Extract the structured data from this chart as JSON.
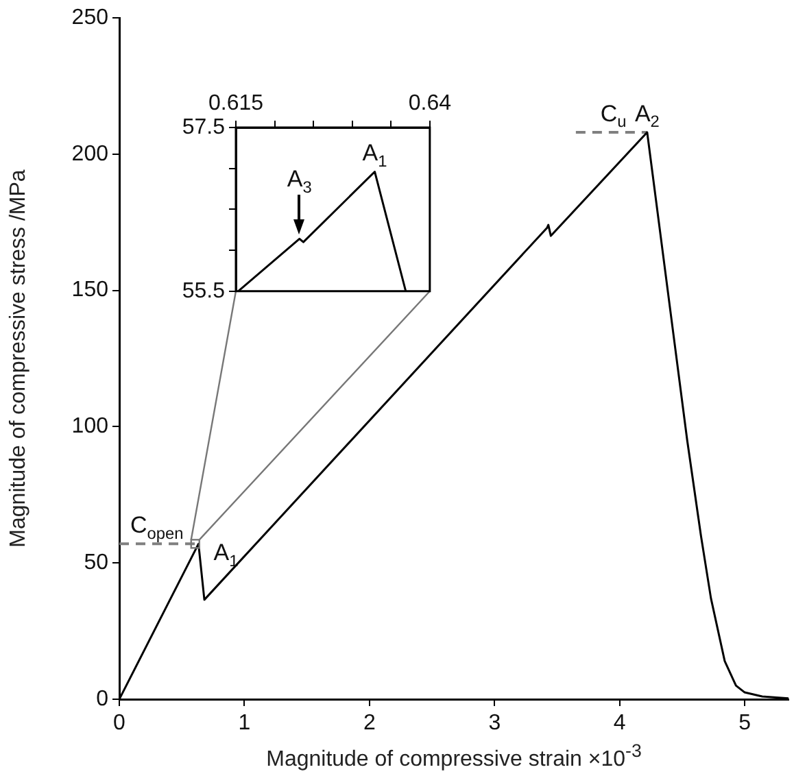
{
  "chart_data": [
    {
      "type": "line",
      "xlabel": "Magnitude of compressive strain ×10$^{-3}$",
      "ylabel": "Magnitude of compressive stress /MPa",
      "xlim": [
        0,
        5.35
      ],
      "ylim": [
        0,
        250
      ],
      "xticks": [
        0,
        1,
        2,
        3,
        4,
        5
      ],
      "yticks": [
        0,
        50,
        100,
        150,
        200,
        250
      ],
      "grid": false,
      "series": [
        {
          "color": "#000000",
          "x": [
            0,
            0.633,
            0.68,
            3.42,
            3.43,
            3.45,
            4.22,
            4.54,
            4.65,
            4.73,
            4.84,
            4.93,
            5.0,
            5.14,
            5.35
          ],
          "values": [
            0,
            57,
            36.5,
            173,
            174,
            170,
            208,
            95,
            60,
            37,
            14,
            5,
            2.5,
            1,
            0.3
          ]
        },
        {
          "color": "#808080",
          "line_style": "dashed",
          "x": [
            0,
            0.633
          ],
          "values": [
            57,
            57
          ]
        },
        {
          "color": "#808080",
          "line_style": "dashed",
          "x": [
            3.65,
            4.22
          ],
          "values": [
            208,
            208
          ]
        }
      ],
      "annotations": [
        {
          "text": "C$_{open}$",
          "x": 0.3,
          "y": 57
        },
        {
          "text": "A$_{1}$",
          "x": 0.633,
          "y": 57
        },
        {
          "text": "C$_{u}$",
          "x": 3.95,
          "y": 208
        },
        {
          "text": "A$_{2}$",
          "x": 4.22,
          "y": 208
        }
      ]
    },
    {
      "type": "line",
      "xlim": [
        0.615,
        0.64
      ],
      "ylim": [
        55.5,
        57.5
      ],
      "xticks": [
        0.615,
        {
          "value": 0.62,
          "label": null
        },
        {
          "value": 0.625,
          "label": null
        },
        {
          "value": 0.63,
          "label": null
        },
        {
          "value": 0.635,
          "label": null
        },
        0.64
      ],
      "yticks": [
        55.5,
        {
          "value": 56,
          "label": null
        },
        {
          "value": 56.5,
          "label": null
        },
        {
          "value": 57,
          "label": null
        },
        57.5
      ],
      "grid": false,
      "series": [
        {
          "color": "#000000",
          "x": [
            0.6153,
            0.6232,
            0.6237,
            0.6329,
            0.6369
          ],
          "values": [
            55.5,
            56.14,
            56.1,
            56.96,
            55.5
          ]
        }
      ],
      "annotations": [
        {
          "text": "A$_{1}$",
          "x": 0.6329,
          "y": 56.96
        },
        {
          "text": "A$_{3}$",
          "x": 0.6232,
          "y": 56.14
        }
      ]
    }
  ]
}
